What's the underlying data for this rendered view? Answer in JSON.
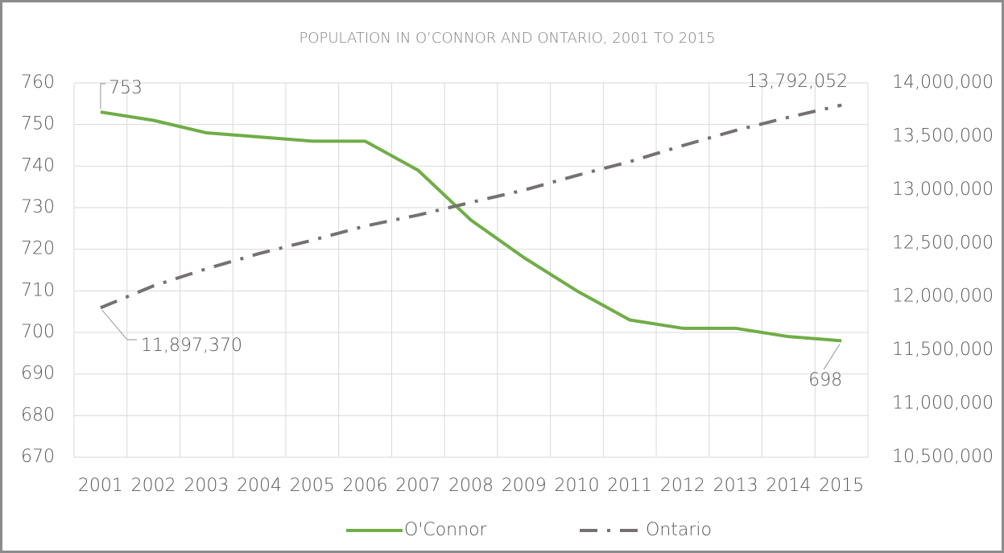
{
  "chart_data": {
    "type": "line",
    "title": "POPULATION IN O’CONNOR AND ONTARIO, 2001 TO 2015",
    "categories": [
      "2001",
      "2002",
      "2003",
      "2004",
      "2005",
      "2006",
      "2007",
      "2008",
      "2009",
      "2010",
      "2011",
      "2012",
      "2013",
      "2014",
      "2015"
    ],
    "series": [
      {
        "name": "O'Connor",
        "color": "#70ad47",
        "dash": "solid",
        "values": [
          753,
          751,
          748,
          747,
          746,
          746,
          739,
          727,
          718,
          710,
          703,
          701,
          701,
          699,
          698
        ],
        "value_labels": [
          "753",
          null,
          null,
          null,
          null,
          null,
          null,
          null,
          null,
          null,
          null,
          null,
          null,
          null,
          "698"
        ]
      },
      {
        "name": "Ontario",
        "color": "#767171",
        "dash": "dash-dot",
        "axis": "y2",
        "values": [
          11897370,
          12102045,
          12261968,
          12404780,
          12529000,
          12661566,
          12764195,
          12882625,
          12997687,
          13135063,
          13263544,
          13413702,
          13555754,
          13678740,
          13792052
        ],
        "value_labels": [
          "11,897,370",
          null,
          null,
          null,
          null,
          null,
          null,
          null,
          null,
          null,
          null,
          null,
          null,
          null,
          "13,792,052"
        ]
      }
    ],
    "ylim": [
      670,
      760
    ],
    "yticks": [
      670,
      680,
      690,
      700,
      710,
      720,
      730,
      740,
      750,
      760
    ],
    "y2lim": [
      10500000,
      14000000
    ],
    "y2ticks": [
      {
        "value": 10500000,
        "label": "10,500,000"
      },
      {
        "value": 11000000,
        "label": "11,000,000"
      },
      {
        "value": 11500000,
        "label": "11,500,000"
      },
      {
        "value": 12000000,
        "label": "12,000,000"
      },
      {
        "value": 12500000,
        "label": "12,500,000"
      },
      {
        "value": 13000000,
        "label": "13,000,000"
      },
      {
        "value": 13500000,
        "label": "13,500,000"
      },
      {
        "value": 14000000,
        "label": "14,000,000"
      }
    ],
    "grid": true,
    "legend": "bottom"
  }
}
